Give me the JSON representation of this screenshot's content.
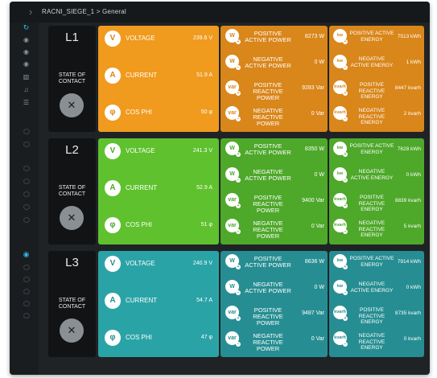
{
  "header": {
    "breadcrumb": "RACNI_SIEGE_1 > General",
    "back_arrow": "›"
  },
  "colors": {
    "orange": "#f09a1e",
    "orange_dark": "#d9861a",
    "green": "#5fc12e",
    "green_dark": "#4ea82a",
    "teal": "#2aa3a6",
    "teal_dark": "#268e92"
  },
  "sidebar": {
    "icons": [
      "refresh-icon",
      "gauge-icon",
      "gauge-icon",
      "gauge-icon",
      "chart-icon",
      "bell-icon",
      "sliders-icon",
      "eye-icon"
    ]
  },
  "lines": [
    {
      "title": "L1",
      "state_label": "STATE OF CONTACT",
      "basic": [
        {
          "icon": "V",
          "label": "VOLTAGE",
          "value": "239.6 V"
        },
        {
          "icon": "A",
          "label": "CURRENT",
          "value": "51.9 A"
        },
        {
          "icon": "φ",
          "label": "COS PHI",
          "value": "50 φ"
        }
      ],
      "power": [
        {
          "icon": "W",
          "sign": "+",
          "label": "POSITIVE ACTIVE POWER",
          "value": "8273 W"
        },
        {
          "icon": "W",
          "sign": "−",
          "label": "NEGATIVE ACTIVE POWER",
          "value": "0 W"
        },
        {
          "icon": "var",
          "sign": "+",
          "label": "POSITIVE REACTIVE POWER",
          "value": "9283 Var"
        },
        {
          "icon": "var",
          "sign": "−",
          "label": "NEGATIVE REACTIVE POWER",
          "value": "0 Var"
        }
      ],
      "energy": [
        {
          "icon": "kw",
          "sign": "+",
          "label": "POSITIVE ACTIVE ENERGY",
          "value": "7513 kWh"
        },
        {
          "icon": "kw",
          "sign": "−",
          "label": "NEGATIVE ACTIVE ENERGY",
          "value": "1 kWh"
        },
        {
          "icon": "kvarh",
          "sign": "+",
          "label": "POSITIVE REACTIVE ENERGY",
          "value": "8447 kvarh"
        },
        {
          "icon": "kvarh",
          "sign": "−",
          "label": "NEGATIVE REACTIVE ENERGY",
          "value": "2 kvarh"
        }
      ]
    },
    {
      "title": "L2",
      "state_label": "STATE OF CONTACT",
      "basic": [
        {
          "icon": "V",
          "label": "VOLTAGE",
          "value": "241.3 V"
        },
        {
          "icon": "A",
          "label": "CURRENT",
          "value": "52.9 A"
        },
        {
          "icon": "φ",
          "label": "COS PHI",
          "value": "51 φ"
        }
      ],
      "power": [
        {
          "icon": "W",
          "sign": "+",
          "label": "POSITIVE ACTIVE POWER",
          "value": "8350 W"
        },
        {
          "icon": "W",
          "sign": "−",
          "label": "NEGATIVE ACTIVE POWER",
          "value": "0 W"
        },
        {
          "icon": "var",
          "sign": "+",
          "label": "POSITIVE REACTIVE POWER",
          "value": "9400 Var"
        },
        {
          "icon": "var",
          "sign": "−",
          "label": "NEGATIVE REACTIVE POWER",
          "value": "0 Var"
        }
      ],
      "energy": [
        {
          "icon": "kw",
          "sign": "+",
          "label": "POSITIVE ACTIVE ENERGY",
          "value": "7628 kWh"
        },
        {
          "icon": "kw",
          "sign": "−",
          "label": "NEGATIVE ACTIVE ENERGY",
          "value": "0 kWh"
        },
        {
          "icon": "kvarh",
          "sign": "+",
          "label": "POSITIVE REACTIVE ENERGY",
          "value": "8839 kvarh"
        },
        {
          "icon": "kvarh",
          "sign": "−",
          "label": "NEGATIVE REACTIVE ENERGY",
          "value": "5 kvarh"
        }
      ]
    },
    {
      "title": "L3",
      "state_label": "STATE OF CONTACT",
      "basic": [
        {
          "icon": "V",
          "label": "VOLTAGE",
          "value": "240.9 V"
        },
        {
          "icon": "A",
          "label": "CURRENT",
          "value": "54.7 A"
        },
        {
          "icon": "φ",
          "label": "COS PHI",
          "value": "47 φ"
        }
      ],
      "power": [
        {
          "icon": "W",
          "sign": "+",
          "label": "POSITIVE ACTIVE POWER",
          "value": "8636 W"
        },
        {
          "icon": "W",
          "sign": "−",
          "label": "NEGATIVE ACTIVE POWER",
          "value": "0 W"
        },
        {
          "icon": "var",
          "sign": "+",
          "label": "POSITIVE REACTIVE POWER",
          "value": "9487 Var"
        },
        {
          "icon": "var",
          "sign": "−",
          "label": "NEGATIVE REACTIVE POWER",
          "value": "0 Var"
        }
      ],
      "energy": [
        {
          "icon": "kw",
          "sign": "+",
          "label": "POSITIVE ACTIVE ENERGY",
          "value": "7914 kWh"
        },
        {
          "icon": "kw",
          "sign": "−",
          "label": "NEGATIVE ACTIVE ENERGY",
          "value": "0 kWh"
        },
        {
          "icon": "kvarh",
          "sign": "+",
          "label": "POSITIVE REACTIVE ENERGY",
          "value": "8735 kvarh"
        },
        {
          "icon": "kvarh",
          "sign": "−",
          "label": "NEGATIVE REACTIVE ENERGY",
          "value": "0 kvarh"
        }
      ]
    }
  ]
}
